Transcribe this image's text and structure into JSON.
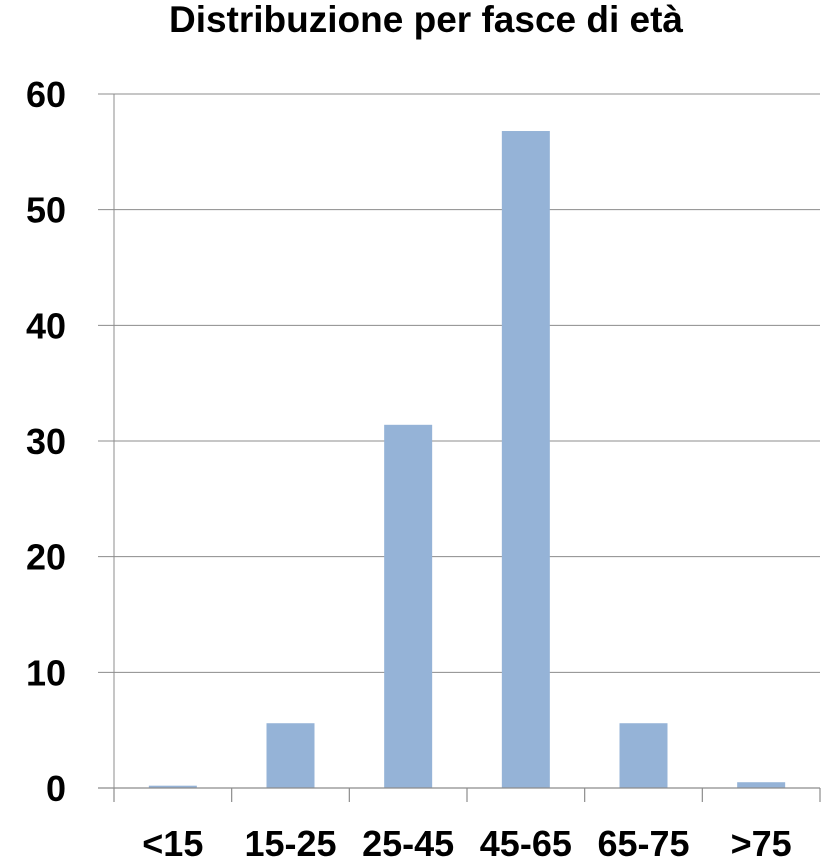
{
  "chart_data": {
    "type": "bar",
    "title": "Distribuzione per fasce di età",
    "xlabel": "",
    "ylabel": "",
    "categories": [
      "<15",
      "15-25",
      "25-45",
      "45-65",
      "65-75",
      ">75"
    ],
    "values": [
      0.2,
      5.6,
      31.4,
      56.8,
      5.6,
      0.5
    ],
    "ylim": [
      0,
      60
    ],
    "yticks": [
      0,
      10,
      20,
      30,
      40,
      50,
      60
    ],
    "grid": true,
    "legend": "none",
    "bar_color": "#95b3d7"
  }
}
